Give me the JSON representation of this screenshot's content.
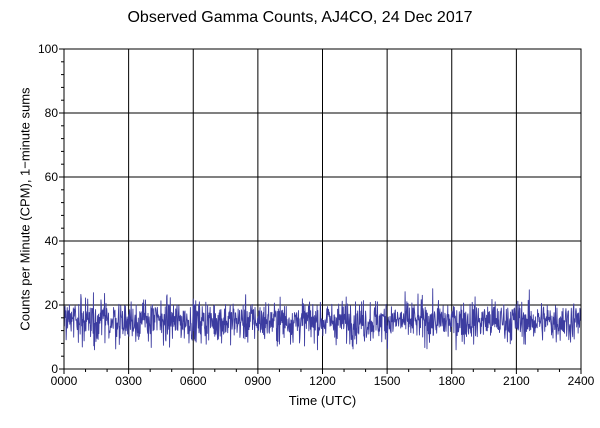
{
  "chart_data": {
    "type": "line",
    "title": "Observed Gamma Counts, AJ4CO, 24 Dec 2017",
    "xlabel": "Time (UTC)",
    "ylabel": "Counts per Minute (CPM), 1−minute sums",
    "x_ticks": [
      "0000",
      "0300",
      "0600",
      "0900",
      "1200",
      "1500",
      "1800",
      "2100",
      "2400"
    ],
    "y_ticks": [
      0,
      20,
      40,
      60,
      80,
      100
    ],
    "xlim": [
      0,
      1440
    ],
    "ylim": [
      0,
      100
    ],
    "x_unit": "minutes since 0000 UTC",
    "grid": true,
    "series": [
      {
        "color": "#3c3ca0",
        "sampling_interval_minutes": 1,
        "values_summary": {
          "typical": 15,
          "min": 6,
          "max": 29
        },
        "values_note": "1440 noisy one-minute samples fluctuating mostly between ~9 and ~22 CPM"
      }
    ]
  }
}
